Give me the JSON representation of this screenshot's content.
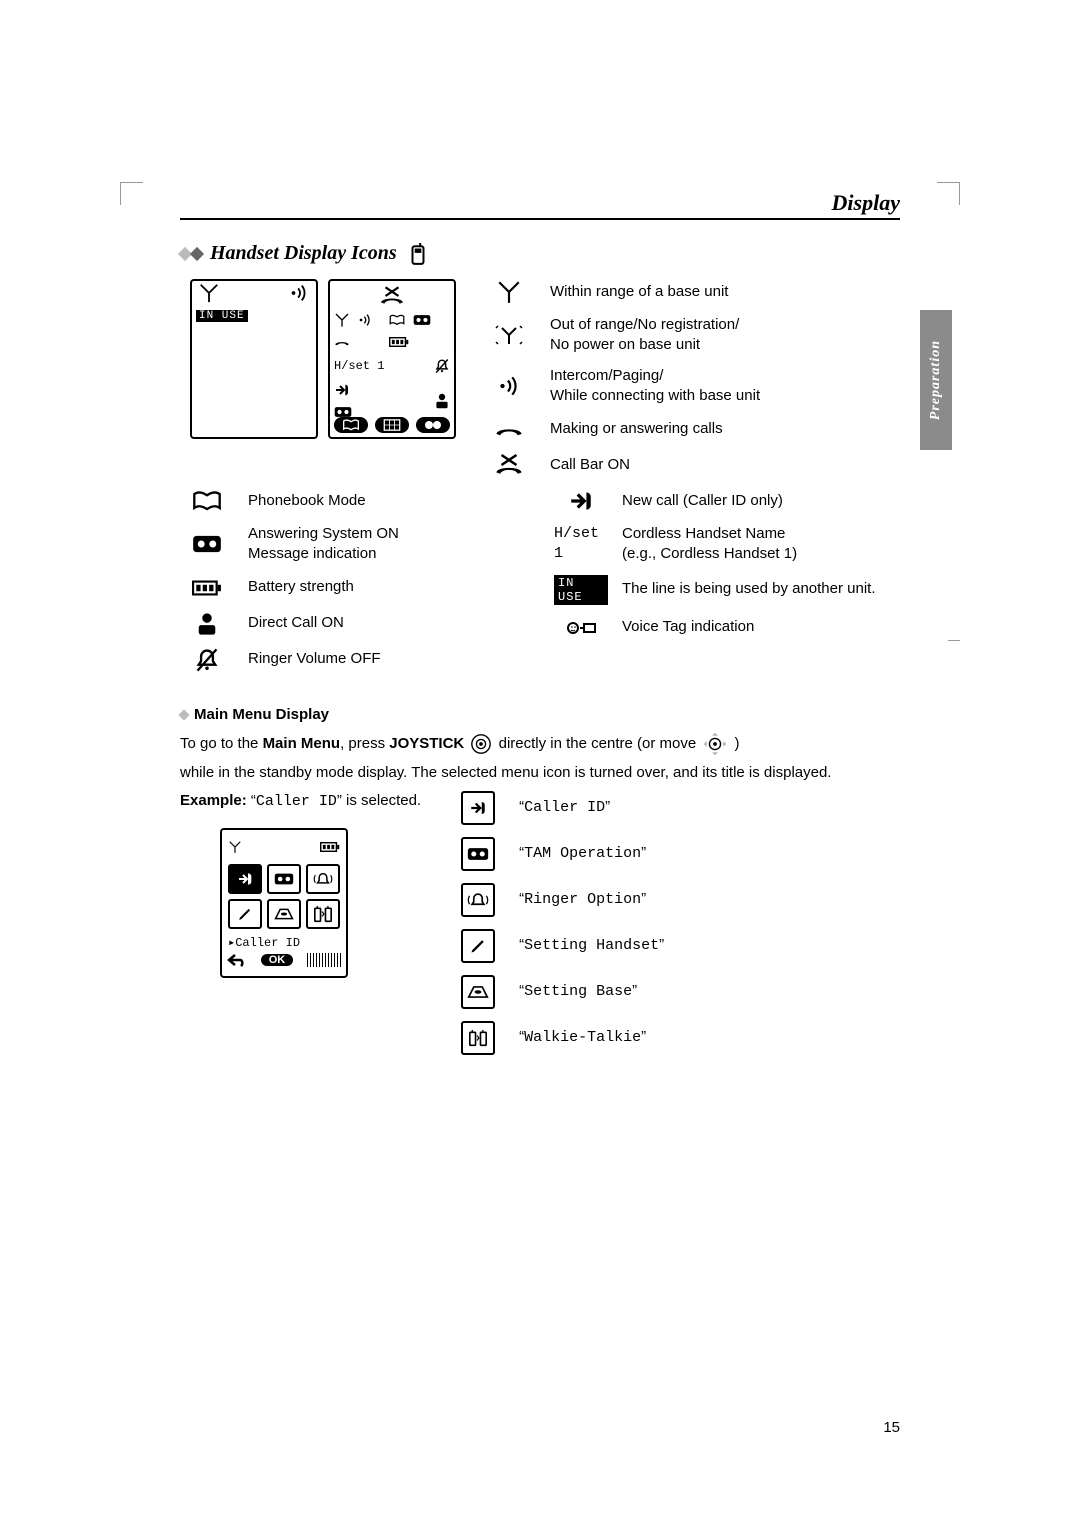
{
  "chapter_title": "Display",
  "section_title": "Handset Display Icons",
  "side_tab": "Preparation",
  "screen_left": {
    "status_label": "IN USE"
  },
  "screen_right": {
    "handset_label": "H/set 1"
  },
  "left_icons": [
    {
      "name": "phonebook-icon",
      "label": "Phonebook Mode"
    },
    {
      "name": "tam-icon",
      "label": "Answering System ON\nMessage indication"
    },
    {
      "name": "battery-icon",
      "label": "Battery strength"
    },
    {
      "name": "directcall-icon",
      "label": "Direct Call ON"
    },
    {
      "name": "ringer-off-icon",
      "label": "Ringer Volume OFF"
    }
  ],
  "right_icons": [
    {
      "name": "antenna-icon",
      "label": "Within range of a base unit"
    },
    {
      "name": "antenna-blink-icon",
      "label": "Out of range/No registration/\nNo power on base unit"
    },
    {
      "name": "paging-icon",
      "label": "Intercom/Paging/\nWhile connecting with base unit"
    },
    {
      "name": "handset-icon",
      "label": "Making or answering calls"
    },
    {
      "name": "callbar-icon",
      "label": "Call Bar ON"
    },
    {
      "name": "newcall-icon",
      "label": "New call (Caller ID only)"
    },
    {
      "name": "hset-label",
      "label": "Cordless Handset Name\n(e.g., Cordless Handset 1)",
      "text": "H/set 1"
    },
    {
      "name": "inuse-label",
      "label": "The line is being used by another unit.",
      "text": "IN USE"
    },
    {
      "name": "voicetag-icon",
      "label": "Voice Tag indication"
    }
  ],
  "subhead": "Main Menu Display",
  "para1_a": "To go to the ",
  "para1_b": "Main Menu",
  "para1_c": ", press ",
  "para1_d": "JOYSTICK",
  "para1_e": " directly in the centre (or move ",
  "para1_f": " )",
  "para2": "while in the standby mode display. The selected menu icon is turned over, and its title is displayed.",
  "example_a": "Example:",
  "example_b": "Caller ID",
  "example_c": "” is selected.",
  "menu_screen": {
    "selected_label": "Caller ID",
    "ok_label": "OK"
  },
  "menu_items": [
    {
      "name": "callerid-icon",
      "label": "Caller ID"
    },
    {
      "name": "tam-icon",
      "label": "TAM Operation"
    },
    {
      "name": "ringer-icon",
      "label": "Ringer Option"
    },
    {
      "name": "sethand-icon",
      "label": "Setting Handset"
    },
    {
      "name": "setbase-icon",
      "label": "Setting Base"
    },
    {
      "name": "walkie-icon",
      "label": "Walkie-Talkie"
    }
  ],
  "page_number": "15"
}
